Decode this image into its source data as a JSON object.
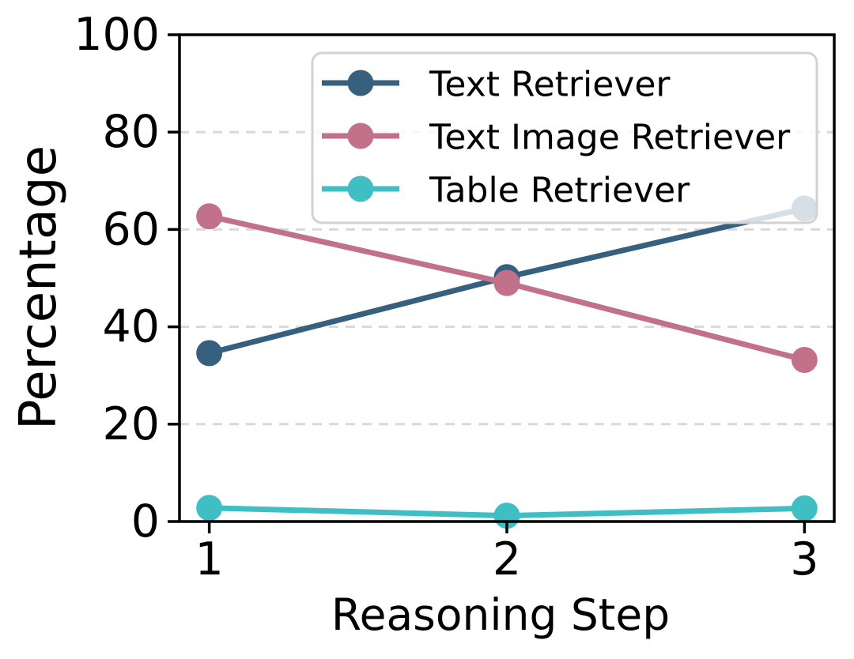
{
  "chart_data": {
    "type": "line",
    "title": "",
    "xlabel": "Reasoning Step",
    "ylabel": "Percentage",
    "x": [
      1,
      2,
      3
    ],
    "xtick_labels": [
      "1",
      "2",
      "3"
    ],
    "ytick_labels": [
      "0",
      "20",
      "40",
      "60",
      "80",
      "100"
    ],
    "ytick_values": [
      0,
      20,
      40,
      60,
      80,
      100
    ],
    "xlim": [
      0.9,
      3.1
    ],
    "ylim": [
      0,
      100
    ],
    "grid": {
      "horizontal_dashed_at": [
        20,
        40,
        60,
        80
      ],
      "color": "#d9d9d9"
    },
    "legend": {
      "position": "upper right inside plot",
      "frame": true,
      "frame_color": "#d2d2d2",
      "background": "#ffffff",
      "background_opacity": 0.8
    },
    "series": [
      {
        "name": "Text Retriever",
        "color": "#36607e",
        "values": [
          34.6,
          50.2,
          64.3
        ]
      },
      {
        "name": "Text Image Retriever",
        "color": "#c2718a",
        "values": [
          62.7,
          49.0,
          33.2
        ]
      },
      {
        "name": "Table Retriever",
        "color": "#3fbec3",
        "values": [
          2.8,
          1.2,
          2.7
        ]
      }
    ],
    "axis_color": "#000000"
  }
}
